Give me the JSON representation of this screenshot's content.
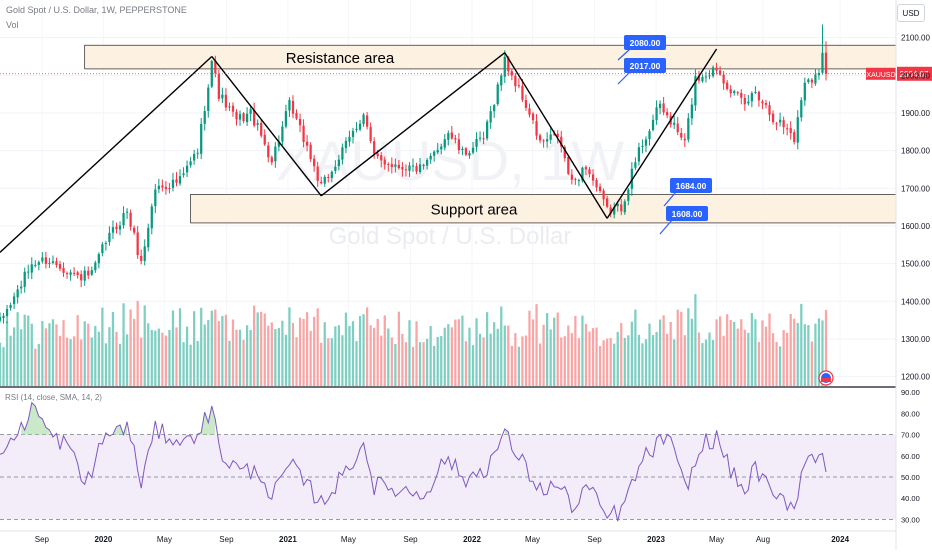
{
  "header": {
    "title": "Gold Spot / U.S. Dollar, 1W, PEPPERSTONE",
    "vol_label": "Vol",
    "currency_button": "USD"
  },
  "watermark": {
    "symbol": "XAUUSD, 1W",
    "name": "Gold Spot / U.S. Dollar"
  },
  "price_tag": {
    "symbol": "XAUUSD",
    "value": "2004.07",
    "color": "#f23645"
  },
  "annotations": {
    "resistance": "Resistance area",
    "support": "Support area",
    "callouts": [
      "2080.00",
      "2017.00",
      "1684.00",
      "1608.00"
    ]
  },
  "rsi": {
    "label": "RSI (14, close, SMA, 14, 2)",
    "ticks": [
      "90.00",
      "80.00",
      "70.00",
      "60.00",
      "50.00",
      "40.00",
      "30.00"
    ]
  },
  "colors": {
    "up": "#089981",
    "down": "#f23645",
    "vol_up": "#7ecfc2",
    "vol_down": "#f8a5a5",
    "zone_fill": "#fdf1e1",
    "callout": "#2962ff",
    "rsi_line": "#7e57c2",
    "rsi_band": "#ede7f6"
  },
  "chart_data": {
    "type": "candlestick",
    "timeframe": "1W",
    "y_ticks": [
      1200,
      1300,
      1400,
      1500,
      1600,
      1700,
      1800,
      1900,
      2000,
      2100
    ],
    "x_ticks": [
      {
        "label": "Sep",
        "date": "2019-09"
      },
      {
        "label": "2020",
        "date": "2020-01"
      },
      {
        "label": "May",
        "date": "2020-05"
      },
      {
        "label": "Sep",
        "date": "2020-09"
      },
      {
        "label": "2021",
        "date": "2021-01"
      },
      {
        "label": "May",
        "date": "2021-05"
      },
      {
        "label": "Sep",
        "date": "2021-09"
      },
      {
        "label": "2022",
        "date": "2022-01"
      },
      {
        "label": "May",
        "date": "2022-05"
      },
      {
        "label": "Sep",
        "date": "2022-09"
      },
      {
        "label": "2023",
        "date": "2023-01"
      },
      {
        "label": "May",
        "date": "2023-05"
      },
      {
        "label": "Aug",
        "date": "2023-08"
      },
      {
        "label": "2024",
        "date": "2024-01"
      }
    ],
    "ylim": [
      1175,
      2200
    ],
    "close_anchors": [
      [
        "2019-06-10",
        1345
      ],
      [
        "2019-07-08",
        1410
      ],
      [
        "2019-08-12",
        1500
      ],
      [
        "2019-09-09",
        1510
      ],
      [
        "2019-10-07",
        1495
      ],
      [
        "2019-11-11",
        1465
      ],
      [
        "2019-12-09",
        1470
      ],
      [
        "2020-01-06",
        1560
      ],
      [
        "2020-02-17",
        1640
      ],
      [
        "2020-03-16",
        1500
      ],
      [
        "2020-04-13",
        1700
      ],
      [
        "2020-06-01",
        1720
      ],
      [
        "2020-07-06",
        1800
      ],
      [
        "2020-08-03",
        2040
      ],
      [
        "2020-08-17",
        1950
      ],
      [
        "2020-09-21",
        1880
      ],
      [
        "2020-10-19",
        1900
      ],
      [
        "2020-11-30",
        1775
      ],
      [
        "2021-01-04",
        1920
      ],
      [
        "2021-02-08",
        1810
      ],
      [
        "2021-03-08",
        1700
      ],
      [
        "2021-04-12",
        1780
      ],
      [
        "2021-05-31",
        1900
      ],
      [
        "2021-06-21",
        1780
      ],
      [
        "2021-08-09",
        1760
      ],
      [
        "2021-09-27",
        1750
      ],
      [
        "2021-11-15",
        1850
      ],
      [
        "2021-12-13",
        1790
      ],
      [
        "2022-01-24",
        1830
      ],
      [
        "2022-03-07",
        2040
      ],
      [
        "2022-04-18",
        1920
      ],
      [
        "2022-05-16",
        1820
      ],
      [
        "2022-06-20",
        1840
      ],
      [
        "2022-07-18",
        1710
      ],
      [
        "2022-08-15",
        1760
      ],
      [
        "2022-09-26",
        1640
      ],
      [
        "2022-10-24",
        1650
      ],
      [
        "2022-11-28",
        1800
      ],
      [
        "2023-01-09",
        1920
      ],
      [
        "2023-02-27",
        1820
      ],
      [
        "2023-03-20",
        1990
      ],
      [
        "2023-05-01",
        2020
      ],
      [
        "2023-06-05",
        1950
      ],
      [
        "2023-06-26",
        1920
      ],
      [
        "2023-07-17",
        1960
      ],
      [
        "2023-08-21",
        1890
      ],
      [
        "2023-09-25",
        1850
      ],
      [
        "2023-10-02",
        1830
      ],
      [
        "2023-10-23",
        1990
      ],
      [
        "2023-11-20",
        2000
      ],
      [
        "2023-11-27",
        2070
      ],
      [
        "2023-12-04",
        2004
      ]
    ],
    "zones": [
      {
        "name": "Resistance area",
        "from": 2017,
        "to": 2080,
        "start": "2019-11-25"
      },
      {
        "name": "Support area",
        "from": 1608,
        "to": 1684,
        "start": "2020-06-22"
      }
    ],
    "last_price": 2004.07,
    "rsi_ylim": [
      25,
      92
    ],
    "rsi_levels": [
      70,
      50,
      30
    ],
    "rsi_anchors": [
      [
        "2019-06-10",
        62
      ],
      [
        "2019-07-22",
        72
      ],
      [
        "2019-08-12",
        84
      ],
      [
        "2019-09-23",
        68
      ],
      [
        "2019-10-21",
        66
      ],
      [
        "2019-11-25",
        46
      ],
      [
        "2020-01-06",
        70
      ],
      [
        "2020-02-17",
        74
      ],
      [
        "2020-03-16",
        48
      ],
      [
        "2020-04-13",
        72
      ],
      [
        "2020-06-15",
        66
      ],
      [
        "2020-08-03",
        81
      ],
      [
        "2020-08-24",
        60
      ],
      [
        "2020-09-28",
        53
      ],
      [
        "2020-11-09",
        52
      ],
      [
        "2020-11-30",
        40
      ],
      [
        "2021-01-04",
        56
      ],
      [
        "2021-03-08",
        38
      ],
      [
        "2021-04-19",
        50
      ],
      [
        "2021-05-31",
        66
      ],
      [
        "2021-06-21",
        46
      ],
      [
        "2021-08-09",
        44
      ],
      [
        "2021-09-27",
        42
      ],
      [
        "2021-11-15",
        60
      ],
      [
        "2021-12-13",
        48
      ],
      [
        "2022-01-31",
        55
      ],
      [
        "2022-03-07",
        70
      ],
      [
        "2022-04-18",
        54
      ],
      [
        "2022-05-16",
        44
      ],
      [
        "2022-06-20",
        46
      ],
      [
        "2022-07-25",
        35
      ],
      [
        "2022-08-15",
        46
      ],
      [
        "2022-09-26",
        31
      ],
      [
        "2022-10-24",
        34
      ],
      [
        "2022-12-05",
        58
      ],
      [
        "2023-01-23",
        70
      ],
      [
        "2023-02-27",
        45
      ],
      [
        "2023-04-10",
        67
      ],
      [
        "2023-05-01",
        68
      ],
      [
        "2023-06-05",
        50
      ],
      [
        "2023-06-26",
        43
      ],
      [
        "2023-07-17",
        55
      ],
      [
        "2023-08-21",
        40
      ],
      [
        "2023-09-25",
        38
      ],
      [
        "2023-10-02",
        35
      ],
      [
        "2023-10-23",
        60
      ],
      [
        "2023-11-20",
        58
      ],
      [
        "2023-11-27",
        64
      ],
      [
        "2023-12-04",
        55
      ]
    ],
    "trend_lines": [
      {
        "from": [
          "2019-06-10",
          1530
        ],
        "to": [
          "2020-08-03",
          2050
        ]
      },
      {
        "from": [
          "2020-08-03",
          2050
        ],
        "to": [
          "2021-03-08",
          1680
        ]
      },
      {
        "from": [
          "2021-03-08",
          1680
        ],
        "to": [
          "2022-03-07",
          2060
        ]
      },
      {
        "from": [
          "2022-03-07",
          2060
        ],
        "to": [
          "2022-09-26",
          1620
        ]
      },
      {
        "from": [
          "2022-09-26",
          1620
        ],
        "to": [
          "2023-05-01",
          2070
        ]
      }
    ]
  }
}
